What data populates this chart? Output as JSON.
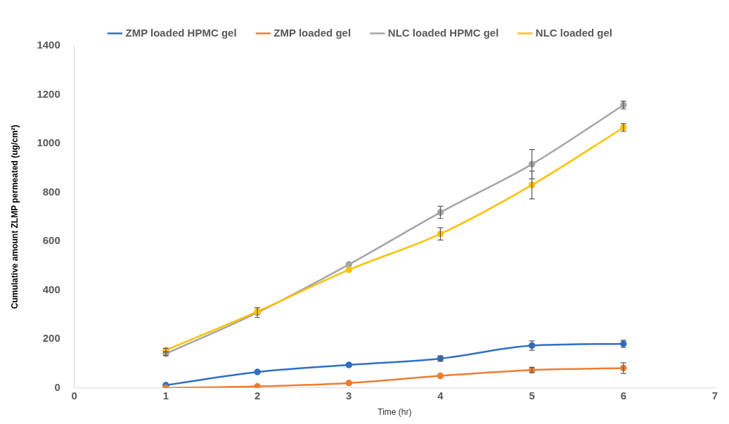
{
  "chart_data": {
    "type": "line",
    "x": [
      1,
      2,
      3,
      4,
      5,
      6
    ],
    "xlabel": "Time (hr)",
    "ylabel": "Cumulative amount ZLMP permeated (ug/cm²)",
    "xlim": [
      0,
      7
    ],
    "xticks": [
      0,
      1,
      2,
      3,
      4,
      5,
      6,
      7
    ],
    "ylim": [
      0,
      1400
    ],
    "yticks": [
      0,
      200,
      400,
      600,
      800,
      1000,
      1200,
      1400
    ],
    "grid": false,
    "legend": "top",
    "marker": "circle",
    "line_style": "solid",
    "series": [
      {
        "name": "ZMP loaded HPMC gel",
        "color": "#2f6fc4",
        "values": [
          11,
          65,
          94,
          120,
          173,
          180
        ],
        "errors": [
          null,
          null,
          null,
          11,
          19,
          15
        ]
      },
      {
        "name": "ZMP loaded gel",
        "color": "#ed7d31",
        "values": [
          0,
          6,
          20,
          49,
          73,
          81
        ],
        "errors": [
          null,
          null,
          null,
          null,
          11,
          22
        ]
      },
      {
        "name": "NLC loaded HPMC gel",
        "color": "#a5a5a5",
        "values": [
          140,
          308,
          505,
          718,
          915,
          1157
        ],
        "errors": [
          8,
          20,
          null,
          25,
          60,
          16
        ]
      },
      {
        "name": "NLC loaded gel",
        "color": "#ffc000",
        "values": [
          154,
          312,
          483,
          630,
          830,
          1065
        ],
        "errors": [
          8,
          null,
          null,
          25,
          57,
          16
        ]
      }
    ]
  }
}
